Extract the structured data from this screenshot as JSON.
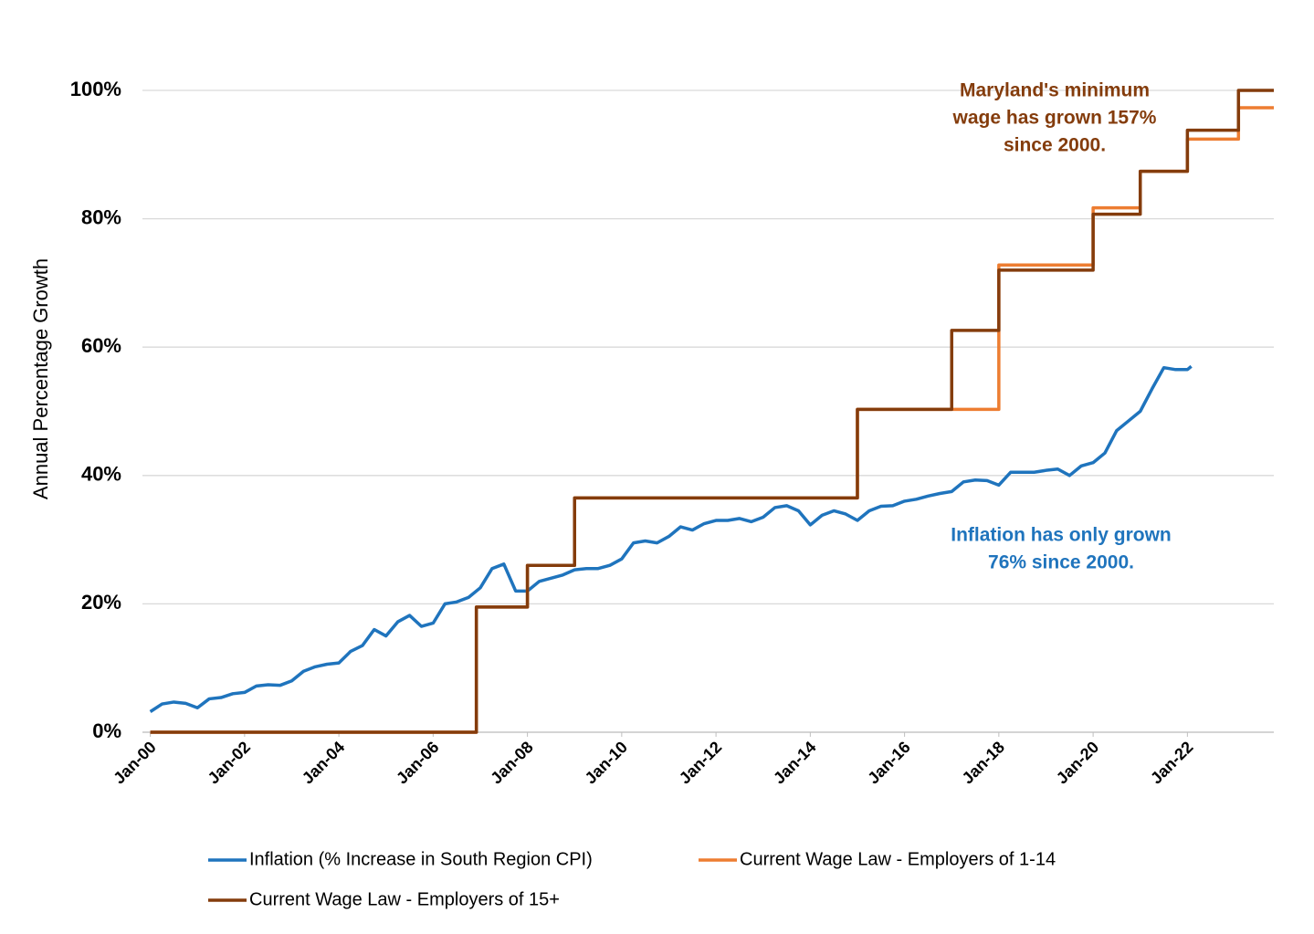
{
  "chart_data": {
    "type": "line",
    "y_label": "Annual Percentage Growth",
    "xlim": [
      -2,
      286
    ],
    "xticks": [
      {
        "value": 0,
        "label": "Jan-00"
      },
      {
        "value": 24,
        "label": "Jan-02"
      },
      {
        "value": 48,
        "label": "Jan-04"
      },
      {
        "value": 72,
        "label": "Jan-06"
      },
      {
        "value": 96,
        "label": "Jan-08"
      },
      {
        "value": 120,
        "label": "Jan-10"
      },
      {
        "value": 144,
        "label": "Jan-12"
      },
      {
        "value": 168,
        "label": "Jan-14"
      },
      {
        "value": 192,
        "label": "Jan-16"
      },
      {
        "value": 216,
        "label": "Jan-18"
      },
      {
        "value": 240,
        "label": "Jan-20"
      },
      {
        "value": 264,
        "label": "Jan-22"
      }
    ],
    "ylim": [
      0,
      100
    ],
    "yticks": [
      {
        "value": 0,
        "label": "0%"
      },
      {
        "value": 20,
        "label": "20%"
      },
      {
        "value": 40,
        "label": "40%"
      },
      {
        "value": 60,
        "label": "60%"
      },
      {
        "value": 80,
        "label": "80%"
      },
      {
        "value": 100,
        "label": "100%"
      }
    ],
    "grid": true,
    "series": [
      {
        "name": "Inflation (% Increase in South Region CPI)",
        "color": "#1f74bd",
        "x": [
          0,
          3,
          6,
          9,
          12,
          15,
          18,
          21,
          24,
          27,
          30,
          33,
          36,
          39,
          42,
          45,
          48,
          51,
          54,
          57,
          60,
          63,
          66,
          69,
          72,
          75,
          78,
          81,
          84,
          87,
          90,
          93,
          96,
          99,
          102,
          105,
          108,
          111,
          114,
          117,
          120,
          123,
          126,
          129,
          132,
          135,
          138,
          141,
          144,
          147,
          150,
          153,
          156,
          159,
          162,
          165,
          168,
          171,
          174,
          177,
          180,
          183,
          186,
          189,
          192,
          195,
          198,
          201,
          204,
          207,
          210,
          213,
          216,
          219,
          222,
          225,
          228,
          231,
          234,
          237,
          240,
          243,
          246,
          249,
          252,
          255,
          258,
          261,
          264,
          265
        ],
        "values": [
          3.2,
          4.4,
          4.7,
          4.5,
          3.8,
          5.2,
          5.4,
          6.0,
          6.2,
          7.2,
          7.4,
          7.3,
          8.0,
          9.5,
          10.2,
          10.6,
          10.8,
          12.6,
          13.5,
          16.0,
          15.0,
          17.2,
          18.2,
          16.5,
          17.0,
          20.0,
          20.3,
          21.0,
          22.5,
          25.5,
          26.2,
          22.0,
          22.0,
          23.5,
          24.0,
          24.5,
          25.3,
          25.5,
          25.5,
          26.0,
          27.0,
          29.5,
          29.8,
          29.5,
          30.5,
          32.0,
          31.5,
          32.5,
          33.0,
          33.0,
          33.3,
          32.8,
          33.5,
          35.0,
          35.3,
          34.5,
          32.3,
          33.8,
          34.5,
          34.0,
          33.0,
          34.5,
          35.2,
          35.3,
          36.0,
          36.3,
          36.8,
          37.2,
          37.5,
          39.0,
          39.3,
          39.2,
          38.5,
          40.5,
          40.5,
          40.5,
          40.8,
          41.0,
          40.0,
          41.5,
          42.0,
          43.5,
          47.0,
          48.5,
          50.0,
          53.5,
          56.8,
          56.5,
          56.5,
          57.0
        ]
      },
      {
        "name": "Current Wage Law - Employers of 1-14",
        "color": "#ed7d31",
        "x": [
          0,
          83,
          83,
          96,
          96,
          108,
          108,
          180,
          180,
          216,
          216,
          240,
          240,
          252,
          252,
          264,
          264,
          277,
          277,
          286
        ],
        "values": [
          0,
          0,
          19.5,
          19.5,
          26.0,
          26.0,
          36.5,
          36.5,
          50.3,
          50.3,
          72.8,
          72.8,
          81.7,
          81.7,
          87.4,
          87.4,
          92.4,
          92.4,
          97.3,
          97.3
        ]
      },
      {
        "name": "Current Wage Law - Employers of 15+",
        "color": "#843c0c",
        "x": [
          0,
          83,
          83,
          96,
          96,
          108,
          108,
          180,
          180,
          204,
          204,
          216,
          216,
          240,
          240,
          252,
          252,
          264,
          264,
          277,
          277,
          286
        ],
        "values": [
          0,
          0,
          19.5,
          19.5,
          26.0,
          26.0,
          36.5,
          36.5,
          50.3,
          50.3,
          62.6,
          62.6,
          72.0,
          72.0,
          80.7,
          80.7,
          87.4,
          87.4,
          93.8,
          93.8,
          100,
          100
        ]
      }
    ],
    "annotations": [
      {
        "lines": [
          "Maryland's minimum",
          "wage has grown 157%",
          "since 2000."
        ],
        "color": "#843c0c"
      },
      {
        "lines": [
          "Inflation has only grown",
          "76% since 2000."
        ],
        "color": "#1f74bd"
      }
    ]
  }
}
